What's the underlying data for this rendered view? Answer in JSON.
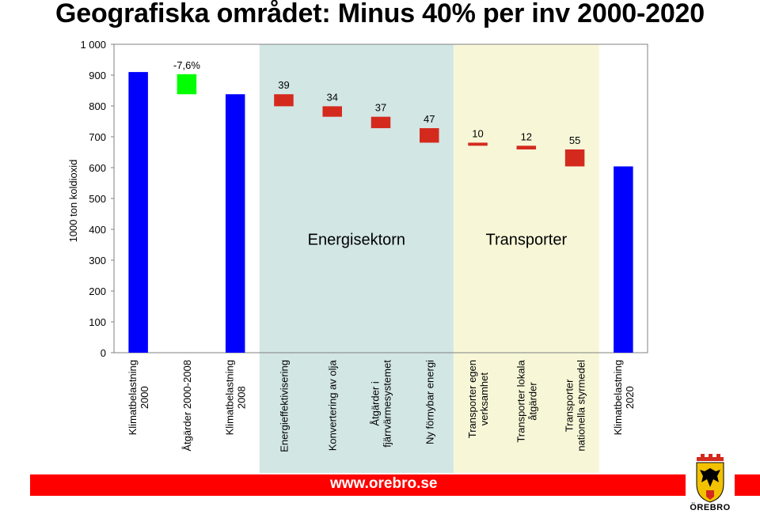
{
  "title": "Geografiska området: Minus 40% per inv 2000-2020",
  "footer": {
    "url": "www.orebro.se",
    "logo_text": "ÖREBRO",
    "logo_icon": "orebro-coat-of-arms",
    "bar_color": "#ff0000"
  },
  "chart_data": {
    "type": "waterfall",
    "ylabel": "1000 ton koldioxid",
    "ylim": [
      0,
      1000
    ],
    "yticks": [
      0,
      100,
      200,
      300,
      400,
      500,
      600,
      700,
      800,
      900,
      1000
    ],
    "ytick_labels": [
      "0",
      "100",
      "200",
      "300",
      "400",
      "500",
      "600",
      "700",
      "800",
      "900",
      "1 000"
    ],
    "grid": false,
    "categories": [
      "Klimatbelastning 2000",
      "Åtgärder 2000-2008",
      "Klimatbelastning 2008",
      "Energieffektivisering",
      "Konvertering av olja",
      "Åtgärder i fjärrvärmesystemet",
      "Ny förnybar energi",
      "Transporter egen verksamhet",
      "Transporter lokala åtgärder",
      "Transporter nationella styrmedel",
      "Klimatbelastning 2020"
    ],
    "category_lines": [
      [
        "Klimatbelastning",
        "2000"
      ],
      [
        "Åtgärder 2000-2008"
      ],
      [
        "Klimatbelastning",
        "2008"
      ],
      [
        "Energieffektivisering"
      ],
      [
        "Konvertering av olja"
      ],
      [
        "Åtgärder i",
        "fjärrvärmesystemet"
      ],
      [
        "Ny förnybar energi"
      ],
      [
        "Transporter egen",
        "verksamhet"
      ],
      [
        "Transporter lokala",
        "åtgärder"
      ],
      [
        "Transporter",
        "nationella styrmedel"
      ],
      [
        "Klimatbelastning",
        "2020"
      ]
    ],
    "bars": [
      {
        "kind": "total",
        "low": 0,
        "high": 910,
        "label": "",
        "color": "#0000ff"
      },
      {
        "kind": "step",
        "low": 838,
        "high": 903,
        "label": "-7,6%",
        "color": "#00ff00"
      },
      {
        "kind": "total",
        "low": 0,
        "high": 838,
        "label": "",
        "color": "#0000ff"
      },
      {
        "kind": "step",
        "low": 799,
        "high": 838,
        "label": "39",
        "color": "#d42a1e"
      },
      {
        "kind": "step",
        "low": 765,
        "high": 799,
        "label": "34",
        "color": "#d42a1e"
      },
      {
        "kind": "step",
        "low": 728,
        "high": 765,
        "label": "37",
        "color": "#d42a1e"
      },
      {
        "kind": "step",
        "low": 681,
        "high": 728,
        "label": "47",
        "color": "#d42a1e"
      },
      {
        "kind": "step",
        "low": 671,
        "high": 681,
        "label": "10",
        "color": "#d42a1e"
      },
      {
        "kind": "step",
        "low": 659,
        "high": 671,
        "label": "12",
        "color": "#d42a1e"
      },
      {
        "kind": "step",
        "low": 604,
        "high": 659,
        "label": "55",
        "color": "#d42a1e"
      },
      {
        "kind": "total",
        "low": 0,
        "high": 604,
        "label": "",
        "color": "#0000ff"
      }
    ],
    "regions": [
      {
        "name": "Energisektorn",
        "from": 3,
        "to": 6,
        "color": "#d2e6e4"
      },
      {
        "name": "Transporter",
        "from": 7,
        "to": 9,
        "color": "#f7f7d8"
      }
    ]
  }
}
